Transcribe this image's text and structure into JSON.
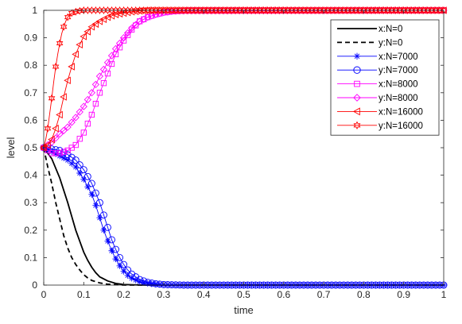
{
  "chart_data": {
    "type": "line",
    "title": "",
    "xlabel": "time",
    "ylabel": "level",
    "xlim": [
      0,
      1
    ],
    "ylim": [
      0,
      1
    ],
    "xticks": [
      "0",
      "0.1",
      "0.2",
      "0.3",
      "0.4",
      "0.5",
      "0.6",
      "0.7",
      "0.8",
      "0.9",
      "1"
    ],
    "yticks": [
      "0",
      "0.1",
      "0.2",
      "0.3",
      "0.4",
      "0.5",
      "0.6",
      "0.7",
      "0.8",
      "0.9",
      "1"
    ],
    "grid": false,
    "legend_position": "top-right",
    "series": [
      {
        "name": "x:N=0",
        "color": "#000000",
        "line": "solid",
        "marker": "none",
        "x": [
          0,
          0.02,
          0.04,
          0.06,
          0.07,
          0.08,
          0.09,
          0.1,
          0.11,
          0.12,
          0.13,
          0.14,
          0.16,
          0.18,
          0.2,
          0.25,
          0.3,
          1.0
        ],
        "y": [
          0.5,
          0.46,
          0.39,
          0.3,
          0.25,
          0.2,
          0.16,
          0.12,
          0.09,
          0.065,
          0.045,
          0.03,
          0.015,
          0.006,
          0.002,
          0,
          0,
          0
        ]
      },
      {
        "name": "y:N=0",
        "color": "#000000",
        "line": "dashed",
        "marker": "none",
        "x": [
          0,
          0.01,
          0.02,
          0.03,
          0.04,
          0.05,
          0.06,
          0.07,
          0.08,
          0.09,
          0.1,
          0.11,
          0.12,
          0.14,
          0.16,
          0.2,
          1.0
        ],
        "y": [
          0.5,
          0.43,
          0.37,
          0.3,
          0.24,
          0.18,
          0.135,
          0.1,
          0.075,
          0.055,
          0.038,
          0.026,
          0.017,
          0.008,
          0.003,
          0,
          0
        ]
      },
      {
        "name": "x:N=7000",
        "color": "#0000ff",
        "line": "solid",
        "marker": "asterisk",
        "x": [
          0,
          0.02,
          0.04,
          0.06,
          0.08,
          0.1,
          0.12,
          0.13,
          0.14,
          0.15,
          0.16,
          0.17,
          0.18,
          0.19,
          0.2,
          0.21,
          0.22,
          0.24,
          0.26,
          0.28,
          0.3,
          0.35,
          1.0
        ],
        "y": [
          0.5,
          0.485,
          0.47,
          0.455,
          0.43,
          0.385,
          0.33,
          0.29,
          0.245,
          0.2,
          0.16,
          0.125,
          0.095,
          0.07,
          0.05,
          0.035,
          0.025,
          0.012,
          0.006,
          0.003,
          0.001,
          0,
          0
        ]
      },
      {
        "name": "y:N=7000",
        "color": "#0000ff",
        "line": "solid",
        "marker": "circle",
        "x": [
          0,
          0.02,
          0.04,
          0.06,
          0.08,
          0.1,
          0.12,
          0.14,
          0.15,
          0.16,
          0.17,
          0.18,
          0.19,
          0.2,
          0.21,
          0.22,
          0.24,
          0.26,
          0.28,
          0.3,
          0.35,
          1.0
        ],
        "y": [
          0.5,
          0.495,
          0.49,
          0.475,
          0.455,
          0.42,
          0.37,
          0.3,
          0.255,
          0.21,
          0.165,
          0.13,
          0.1,
          0.075,
          0.055,
          0.04,
          0.02,
          0.01,
          0.005,
          0.002,
          0,
          0
        ]
      },
      {
        "name": "x:N=8000",
        "color": "#ff00ff",
        "line": "solid",
        "marker": "square",
        "x": [
          0,
          0.02,
          0.04,
          0.06,
          0.08,
          0.1,
          0.12,
          0.14,
          0.16,
          0.18,
          0.2,
          0.22,
          0.24,
          0.26,
          0.28,
          0.3,
          0.32,
          0.34,
          0.36,
          1.0
        ],
        "y": [
          0.5,
          0.48,
          0.48,
          0.49,
          0.51,
          0.555,
          0.62,
          0.7,
          0.77,
          0.84,
          0.89,
          0.93,
          0.96,
          0.975,
          0.985,
          0.992,
          0.996,
          0.998,
          1.0,
          1.0
        ]
      },
      {
        "name": "y:N=8000",
        "color": "#ff00ff",
        "line": "solid",
        "marker": "diamond",
        "x": [
          0,
          0.02,
          0.04,
          0.06,
          0.08,
          0.1,
          0.12,
          0.14,
          0.16,
          0.18,
          0.2,
          0.22,
          0.24,
          0.26,
          0.28,
          0.3,
          0.32,
          0.34,
          1.0
        ],
        "y": [
          0.5,
          0.52,
          0.55,
          0.575,
          0.61,
          0.65,
          0.7,
          0.76,
          0.81,
          0.86,
          0.9,
          0.935,
          0.96,
          0.975,
          0.985,
          0.992,
          0.996,
          0.998,
          1.0
        ]
      },
      {
        "name": "x:N=16000",
        "color": "#ff0000",
        "line": "solid",
        "marker": "triangle-left",
        "x": [
          0,
          0.01,
          0.02,
          0.03,
          0.04,
          0.05,
          0.06,
          0.07,
          0.08,
          0.09,
          0.1,
          0.12,
          0.14,
          0.16,
          0.18,
          0.2,
          0.22,
          0.24,
          0.26,
          1.0
        ],
        "y": [
          0.5,
          0.51,
          0.53,
          0.57,
          0.62,
          0.685,
          0.745,
          0.795,
          0.84,
          0.875,
          0.905,
          0.94,
          0.96,
          0.975,
          0.985,
          0.99,
          0.995,
          0.998,
          1.0,
          1.0
        ]
      },
      {
        "name": "y:N=16000",
        "color": "#ff0000",
        "line": "solid",
        "marker": "hexagram",
        "x": [
          0,
          0.005,
          0.01,
          0.015,
          0.02,
          0.025,
          0.03,
          0.035,
          0.04,
          0.045,
          0.05,
          0.055,
          0.06,
          0.07,
          0.08,
          0.09,
          0.1,
          0.12,
          0.14,
          1.0
        ],
        "y": [
          0.5,
          0.53,
          0.57,
          0.625,
          0.68,
          0.74,
          0.795,
          0.84,
          0.88,
          0.915,
          0.94,
          0.96,
          0.975,
          0.99,
          0.995,
          0.998,
          1.0,
          1.0,
          1.0,
          1.0
        ]
      }
    ]
  }
}
